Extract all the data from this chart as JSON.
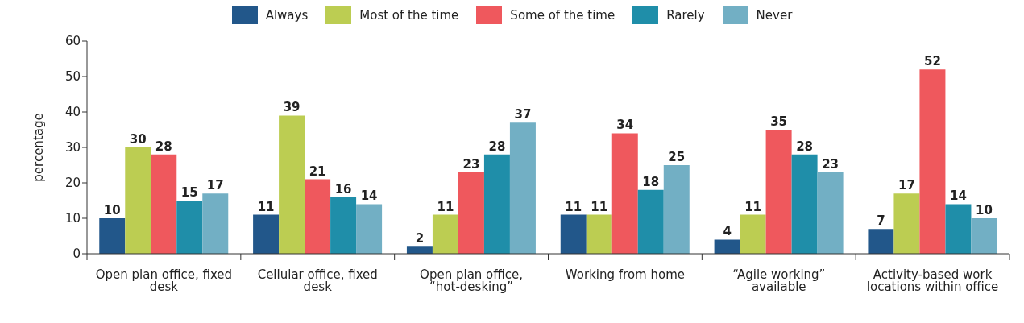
{
  "chart_data": {
    "type": "bar",
    "ylabel": "percentage",
    "categories": [
      "Open plan office, fixed desk",
      "Cellular office, fixed desk",
      "Open plan office, “hot-desking”",
      "Working from home",
      "“Agile working” available",
      "Activity-based work locations within office"
    ],
    "series": [
      {
        "name": "Always",
        "color": "#22578a",
        "values": [
          10,
          11,
          2,
          11,
          4,
          7
        ]
      },
      {
        "name": "Most of the time",
        "color": "#bccd52",
        "values": [
          30,
          39,
          11,
          11,
          11,
          17
        ]
      },
      {
        "name": "Some of the time",
        "color": "#ef585d",
        "values": [
          28,
          21,
          23,
          34,
          35,
          52
        ]
      },
      {
        "name": "Rarely",
        "color": "#1f8ea9",
        "values": [
          15,
          16,
          28,
          18,
          28,
          14
        ]
      },
      {
        "name": "Never",
        "color": "#72afc4",
        "values": [
          17,
          14,
          37,
          25,
          23,
          10
        ]
      }
    ],
    "ylim": [
      0,
      60
    ],
    "yticks": [
      0,
      10,
      20,
      30,
      40,
      50,
      60
    ],
    "grid": false,
    "legend": "top",
    "data_labels": true
  }
}
